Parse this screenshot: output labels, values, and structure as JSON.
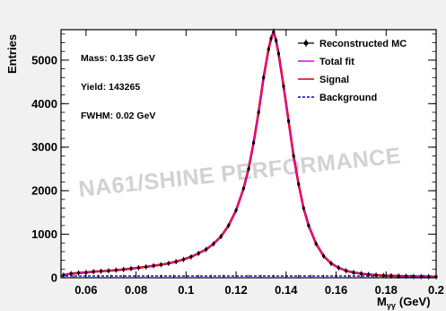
{
  "chart_data": {
    "type": "line",
    "title": "",
    "xlabel": "M",
    "xlabel_subscript": "γγ",
    "xlabel_unit": "(GeV)",
    "ylabel": "Entries",
    "xlim": [
      0.05,
      0.2
    ],
    "ylim": [
      0,
      5700
    ],
    "x_ticks": [
      0.06,
      0.08,
      0.1,
      0.12,
      0.14,
      0.16,
      0.18,
      0.2
    ],
    "x_tick_labels": [
      "0.06",
      "0.08",
      "0.1",
      "0.12",
      "0.14",
      "0.16",
      "0.18",
      "0.2"
    ],
    "y_ticks": [
      0,
      1000,
      2000,
      3000,
      4000,
      5000
    ],
    "y_tick_labels": [
      "0",
      "1000",
      "2000",
      "3000",
      "4000",
      "5000"
    ],
    "grid": false,
    "legend_position": "top-right",
    "annotations": [
      "Mass: 0.135 GeV",
      "Yield: 143265",
      "FWHM: 0.02 GeV"
    ],
    "watermark": "NA61/SHINE PERFORMANCE",
    "series": [
      {
        "name": "Reconstructed MC",
        "kind": "points-with-errors",
        "color": "#000000",
        "x": [
          0.051,
          0.054,
          0.057,
          0.06,
          0.063,
          0.066,
          0.069,
          0.072,
          0.075,
          0.078,
          0.081,
          0.084,
          0.087,
          0.09,
          0.093,
          0.096,
          0.099,
          0.102,
          0.105,
          0.108,
          0.111,
          0.114,
          0.117,
          0.12,
          0.123,
          0.125,
          0.127,
          0.129,
          0.131,
          0.133,
          0.134,
          0.135,
          0.136,
          0.137,
          0.139,
          0.141,
          0.143,
          0.145,
          0.147,
          0.149,
          0.152,
          0.155,
          0.158,
          0.161,
          0.164,
          0.167,
          0.17,
          0.173,
          0.176,
          0.179,
          0.182,
          0.185,
          0.188,
          0.191,
          0.194,
          0.197,
          0.2
        ],
        "y": [
          60,
          95,
          110,
          120,
          140,
          150,
          160,
          175,
          190,
          210,
          230,
          250,
          275,
          300,
          330,
          370,
          420,
          480,
          560,
          650,
          780,
          950,
          1200,
          1550,
          2050,
          2500,
          3100,
          3800,
          4600,
          5250,
          5500,
          5650,
          5450,
          5150,
          4400,
          3600,
          2800,
          2150,
          1600,
          1200,
          780,
          500,
          330,
          230,
          160,
          120,
          95,
          75,
          60,
          50,
          45,
          40,
          35,
          30,
          28,
          25,
          22
        ],
        "error": 60
      },
      {
        "name": "Total fit",
        "kind": "line",
        "color": "#e600e6"
      },
      {
        "name": "Signal",
        "kind": "line",
        "color": "#d40000"
      },
      {
        "name": "Background",
        "kind": "dashed",
        "color": "#0000cc",
        "value": 40
      }
    ]
  }
}
